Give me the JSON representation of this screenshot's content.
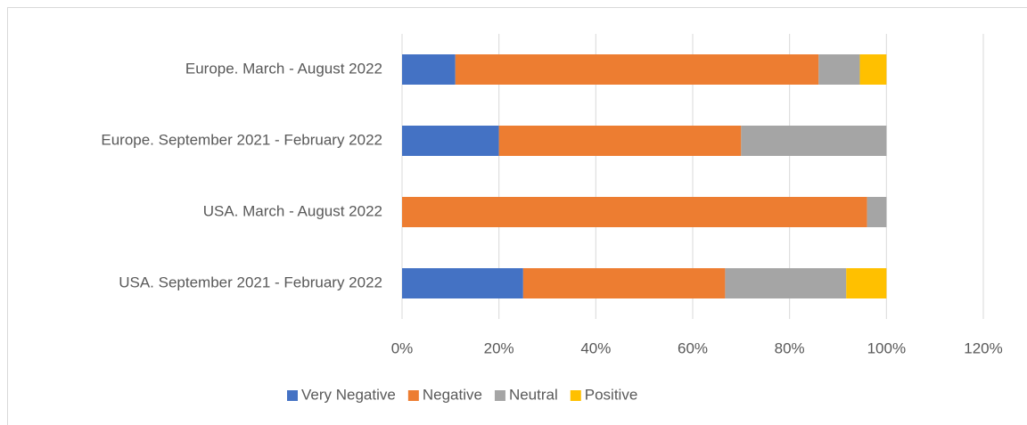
{
  "chart_data": {
    "type": "stacked_barh",
    "categories": [
      "Europe. March - August 2022",
      "Europe. September 2021 - February 2022",
      "USA. March - August 2022",
      "USA. September 2021 - February 2022"
    ],
    "series": [
      {
        "name": "Very Negative",
        "color": "#4472c4",
        "values": [
          11,
          20,
          0,
          25
        ]
      },
      {
        "name": "Negative",
        "color": "#ed7d31",
        "values": [
          75,
          50,
          96,
          41.7
        ]
      },
      {
        "name": "Neutral",
        "color": "#a5a5a5",
        "values": [
          8.5,
          30,
          4,
          25
        ]
      },
      {
        "name": "Positive",
        "color": "#ffc000",
        "values": [
          5.5,
          0,
          0,
          8.3
        ]
      }
    ],
    "xlim": [
      0,
      120
    ],
    "xticks": [
      {
        "value": 0,
        "label": "0%"
      },
      {
        "value": 20,
        "label": "20%"
      },
      {
        "value": 40,
        "label": "40%"
      },
      {
        "value": 60,
        "label": "60%"
      },
      {
        "value": 80,
        "label": "80%"
      },
      {
        "value": 100,
        "label": "100%"
      },
      {
        "value": 120,
        "label": "120%"
      }
    ],
    "grid": true,
    "legend": "bottom"
  }
}
